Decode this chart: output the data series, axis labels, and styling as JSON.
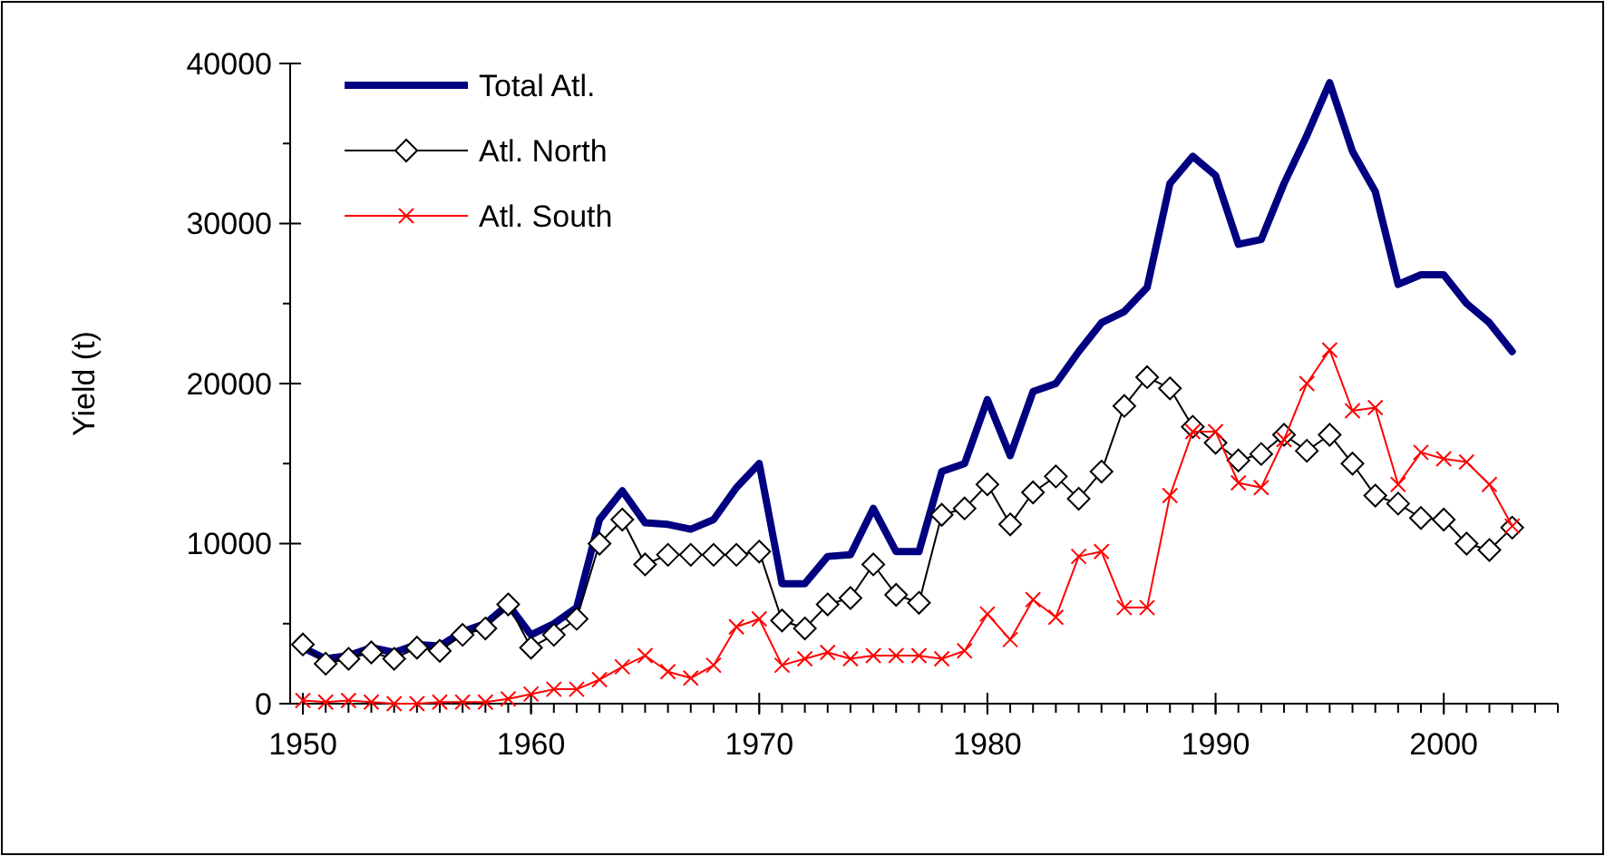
{
  "chart_data": {
    "type": "line",
    "ylabel": "Yield (t)",
    "x": [
      1950,
      1951,
      1952,
      1953,
      1954,
      1955,
      1956,
      1957,
      1958,
      1959,
      1960,
      1961,
      1962,
      1963,
      1964,
      1965,
      1966,
      1967,
      1968,
      1969,
      1970,
      1971,
      1972,
      1973,
      1974,
      1975,
      1976,
      1977,
      1978,
      1979,
      1980,
      1981,
      1982,
      1983,
      1984,
      1985,
      1986,
      1987,
      1988,
      1989,
      1990,
      1991,
      1992,
      1993,
      1994,
      1995,
      1996,
      1997,
      1998,
      1999,
      2000,
      2001,
      2002,
      2003
    ],
    "xlim": [
      1950,
      2005
    ],
    "xticks": [
      1950,
      1960,
      1970,
      1980,
      1990,
      2000
    ],
    "ylim": [
      0,
      40000
    ],
    "yticks": [
      0,
      10000,
      20000,
      30000,
      40000
    ],
    "grid": false,
    "legend": "top left",
    "series": [
      {
        "name": "Total Atl.",
        "color": "#000080",
        "marker": "none",
        "values": [
          3500,
          2800,
          3000,
          3500,
          3200,
          3700,
          3600,
          4500,
          5000,
          6200,
          4300,
          5000,
          6000,
          11500,
          13300,
          11300,
          11200,
          10900,
          11500,
          13500,
          15000,
          7500,
          7500,
          9200,
          9300,
          12200,
          9500,
          9500,
          14500,
          15000,
          19000,
          15500,
          19500,
          20000,
          22000,
          23800,
          24500,
          26000,
          32500,
          34200,
          33000,
          28700,
          29000,
          32500,
          35500,
          38800,
          34500,
          32000,
          26200,
          26800,
          26800,
          25000,
          23800,
          22000
        ]
      },
      {
        "name": "Atl. North",
        "color": "#000000",
        "marker": "diamond",
        "values": [
          3700,
          2500,
          2800,
          3200,
          2800,
          3500,
          3300,
          4300,
          4700,
          6200,
          3500,
          4300,
          5300,
          10000,
          11500,
          8700,
          9300,
          9300,
          9300,
          9300,
          9500,
          5200,
          4700,
          6200,
          6600,
          8700,
          6800,
          6300,
          11800,
          12200,
          13700,
          11200,
          13200,
          14200,
          12800,
          14500,
          18600,
          20400,
          19700,
          17300,
          16300,
          15200,
          15600,
          16800,
          15800,
          16800,
          15000,
          13000,
          12500,
          11600,
          11500,
          10000,
          9600,
          11000
        ]
      },
      {
        "name": "Atl. South",
        "color": "#ff0000",
        "marker": "cross",
        "values": [
          200,
          100,
          200,
          100,
          0,
          0,
          100,
          100,
          100,
          300,
          600,
          900,
          900,
          1500,
          2300,
          3000,
          2000,
          1600,
          2400,
          4800,
          5300,
          2400,
          2800,
          3200,
          2800,
          3000,
          3000,
          3000,
          2800,
          3300,
          5600,
          4000,
          6500,
          5400,
          9200,
          9500,
          6000,
          6000,
          13000,
          17000,
          17000,
          13800,
          13500,
          16500,
          20000,
          22100,
          18300,
          18500,
          13700,
          15700,
          15300,
          15100,
          13700,
          11100
        ]
      }
    ]
  }
}
